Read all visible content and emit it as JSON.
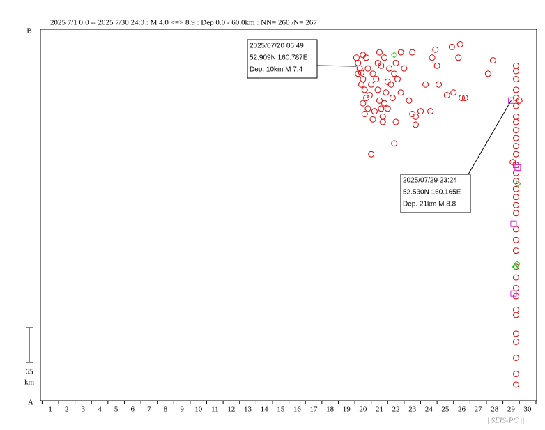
{
  "chart_data": {
    "type": "scatter",
    "title": "2025 7/1 0:0 -- 2025 7/30 24:0  : M 4.0 <=> 8.9   :  Dep 0.0 - 60.0km :  NN= 260 /N= 267",
    "top_label": "B",
    "bottom_label": "A",
    "scale_bar": {
      "length": 65,
      "unit": "km"
    },
    "watermark": "|| SEIS-PC ||",
    "xlim": [
      0.4,
      30.55
    ],
    "ylim": [
      0,
      693
    ],
    "xticks": [
      1,
      2,
      3,
      4,
      5,
      6,
      7,
      8,
      9,
      10,
      11,
      12,
      13,
      14,
      15,
      16,
      17,
      18,
      19,
      20,
      21,
      22,
      23,
      24,
      25,
      26,
      27,
      28,
      29,
      30
    ],
    "series": [
      {
        "name": "circle",
        "color": "#e00000",
        "x": [
          19.6,
          19.7,
          19.8,
          19.9,
          20.0,
          19.7,
          19.9,
          20.1,
          20.2,
          20.0,
          20.3,
          20.1,
          20.4,
          20.5,
          20.6,
          20.3,
          20.2,
          20.0,
          20.8,
          20.9,
          21.0,
          21.1,
          20.7,
          21.2,
          21.3,
          21.4,
          21.5,
          21.6,
          21.1,
          20.9,
          21.0,
          21.3,
          21.7,
          21.8,
          21.5,
          21.2,
          20.6,
          21.9,
          22.0,
          22.1,
          22.3,
          22.5,
          22.8,
          23.0,
          23.2,
          23.5,
          22.3,
          23.0,
          23.8,
          24.2,
          24.4,
          24.5,
          24.6,
          25.1,
          25.4,
          25.8,
          25.9,
          26.0,
          25.5,
          26.2,
          24.1,
          23.2,
          22.0,
          21.9,
          20.5,
          27.6,
          27.9,
          29.3,
          29.3,
          29.3,
          29.3,
          29.3,
          29.3,
          29.3,
          29.3,
          29.3,
          29.3,
          29.3,
          29.3,
          29.3,
          29.3,
          29.3,
          29.3,
          29.3,
          29.3,
          29.3,
          29.3,
          29.3,
          29.3,
          29.3,
          29.3,
          29.3,
          29.3,
          29.3,
          29.3,
          29.3,
          29.3,
          29.3,
          29.3,
          29.3,
          29.1,
          29.5
        ],
        "values": [
          640,
          630,
          620,
          612,
          600,
          610,
          590,
          580,
          565,
          555,
          545,
          535,
          570,
          590,
          610,
          620,
          640,
          645,
          600,
          580,
          560,
          545,
          540,
          530,
          555,
          575,
          595,
          620,
          625,
          630,
          650,
          640,
          590,
          565,
          545,
          520,
          525,
          610,
          630,
          600,
          575,
          620,
          560,
          535,
          530,
          540,
          650,
          650,
          590,
          640,
          655,
          625,
          590,
          570,
          660,
          640,
          665,
          565,
          575,
          565,
          540,
          515,
          520,
          480,
          460,
          610,
          635,
          625,
          615,
          600,
          580,
          565,
          550,
          530,
          520,
          505,
          490,
          475,
          460,
          440,
          425,
          410,
          395,
          380,
          365,
          350,
          320,
          300,
          280,
          250,
          230,
          210,
          195,
          170,
          160,
          125,
          110,
          80,
          50,
          30,
          445,
          560
        ]
      },
      {
        "name": "diamond",
        "color": "#22cc22",
        "x": [
          21.9,
          29.4,
          29.35,
          29.25
        ],
        "values": [
          645,
          405,
          255,
          250
        ]
      },
      {
        "name": "square",
        "color": "#dd22dd",
        "x": [
          29.0,
          29.15,
          29.15,
          29.4,
          29.3
        ],
        "values": [
          560,
          330,
          200,
          435,
          440
        ]
      }
    ],
    "annotations": [
      {
        "lines": [
          "2025/07/20 06:49",
          "52.909N  160.787E",
          "Dep. 10km    M 7.4"
        ],
        "x": 19.6,
        "y": 624
      },
      {
        "lines": [
          "2025/07/29 23:24",
          "52.530N  160.165E",
          "Dep. 21km    M 8.8"
        ],
        "x": 29.0,
        "y": 560
      }
    ]
  }
}
